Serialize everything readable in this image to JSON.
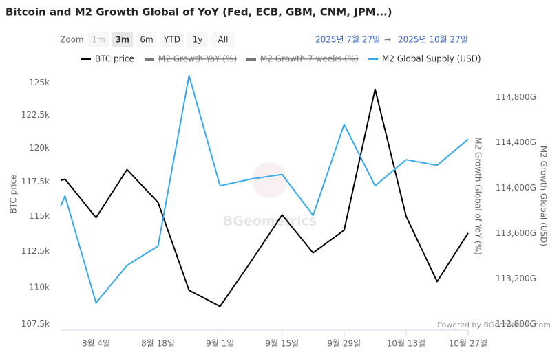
{
  "chart_data": {
    "type": "line",
    "title": "Bitcoin and M2 Growth Global of YoY (Fed, ECB, GBM, CNM, JPM...)",
    "zoom_label": "Zoom",
    "zoom_buttons": [
      "1m",
      "3m",
      "6m",
      "YTD",
      "1y",
      "All"
    ],
    "zoom_selected": "3m",
    "range_from": "2025년 7월 27일",
    "range_arrow": "→",
    "range_to": "2025년 10월 27일",
    "y_label": "BTC price",
    "y2_label": "M2 Growth Global of YoY (%)",
    "y3_label": "M2 Growth Global (USD)",
    "watermark": "BGeometrics",
    "credit": "Powered by BGeometrics.com",
    "log_scale": true,
    "x": [
      "7월 27일",
      "7월 28일",
      "8월 4일",
      "8월 11일",
      "8월 18일",
      "8월 25일",
      "9월 1일",
      "9월 8일",
      "9월 15일",
      "9월 22일",
      "9월 29일",
      "10월 6일",
      "10월 13일",
      "10월 20일",
      "10월 27일"
    ],
    "xlim": [
      "7월 27일",
      "10월 27일"
    ],
    "xticks": [
      "8월 4일",
      "8월 18일",
      "9월 1일",
      "9월 15일",
      "9월 29일",
      "10월 13일",
      "10월 27일"
    ],
    "ylim": [
      107100,
      126100
    ],
    "yticks": [
      {
        "value": 107500,
        "label": "107.5k"
      },
      {
        "value": 110000,
        "label": "110k"
      },
      {
        "value": 112500,
        "label": "112.5k"
      },
      {
        "value": 115000,
        "label": "115k"
      },
      {
        "value": 117500,
        "label": "117.5k"
      },
      {
        "value": 120000,
        "label": "120k"
      },
      {
        "value": 122500,
        "label": "122.5k"
      },
      {
        "value": 125000,
        "label": "125k"
      }
    ],
    "y2lim": [
      112750,
      115050
    ],
    "y2ticks": [
      {
        "value": 112800,
        "label": "112,800G"
      },
      {
        "value": 113200,
        "label": "113,200G"
      },
      {
        "value": 113600,
        "label": "113,600G"
      },
      {
        "value": 114000,
        "label": "114,000G"
      },
      {
        "value": 114400,
        "label": "114,400G"
      },
      {
        "value": 114800,
        "label": "114,800G"
      }
    ],
    "series": [
      {
        "name": "BTC price",
        "color": "#000000",
        "values": [
          117600,
          117700,
          114900,
          118400,
          116000,
          109800,
          108700,
          111800,
          115100,
          112400,
          114000,
          124500,
          115000,
          110400,
          113800
        ]
      },
      {
        "name": "M2 Growth YoY (%)",
        "color": "#666666",
        "visible": false
      },
      {
        "name": "M2 Growth 7 weeks (%)",
        "color": "#666666",
        "visible": false
      },
      {
        "name": "M2 Global Supply (USD)",
        "color": "#33aaee",
        "axis": "y2",
        "values": [
          113840,
          113930,
          112990,
          113320,
          113490,
          114990,
          114020,
          114080,
          114120,
          113760,
          114560,
          114020,
          114250,
          114200,
          114430
        ]
      }
    ]
  }
}
